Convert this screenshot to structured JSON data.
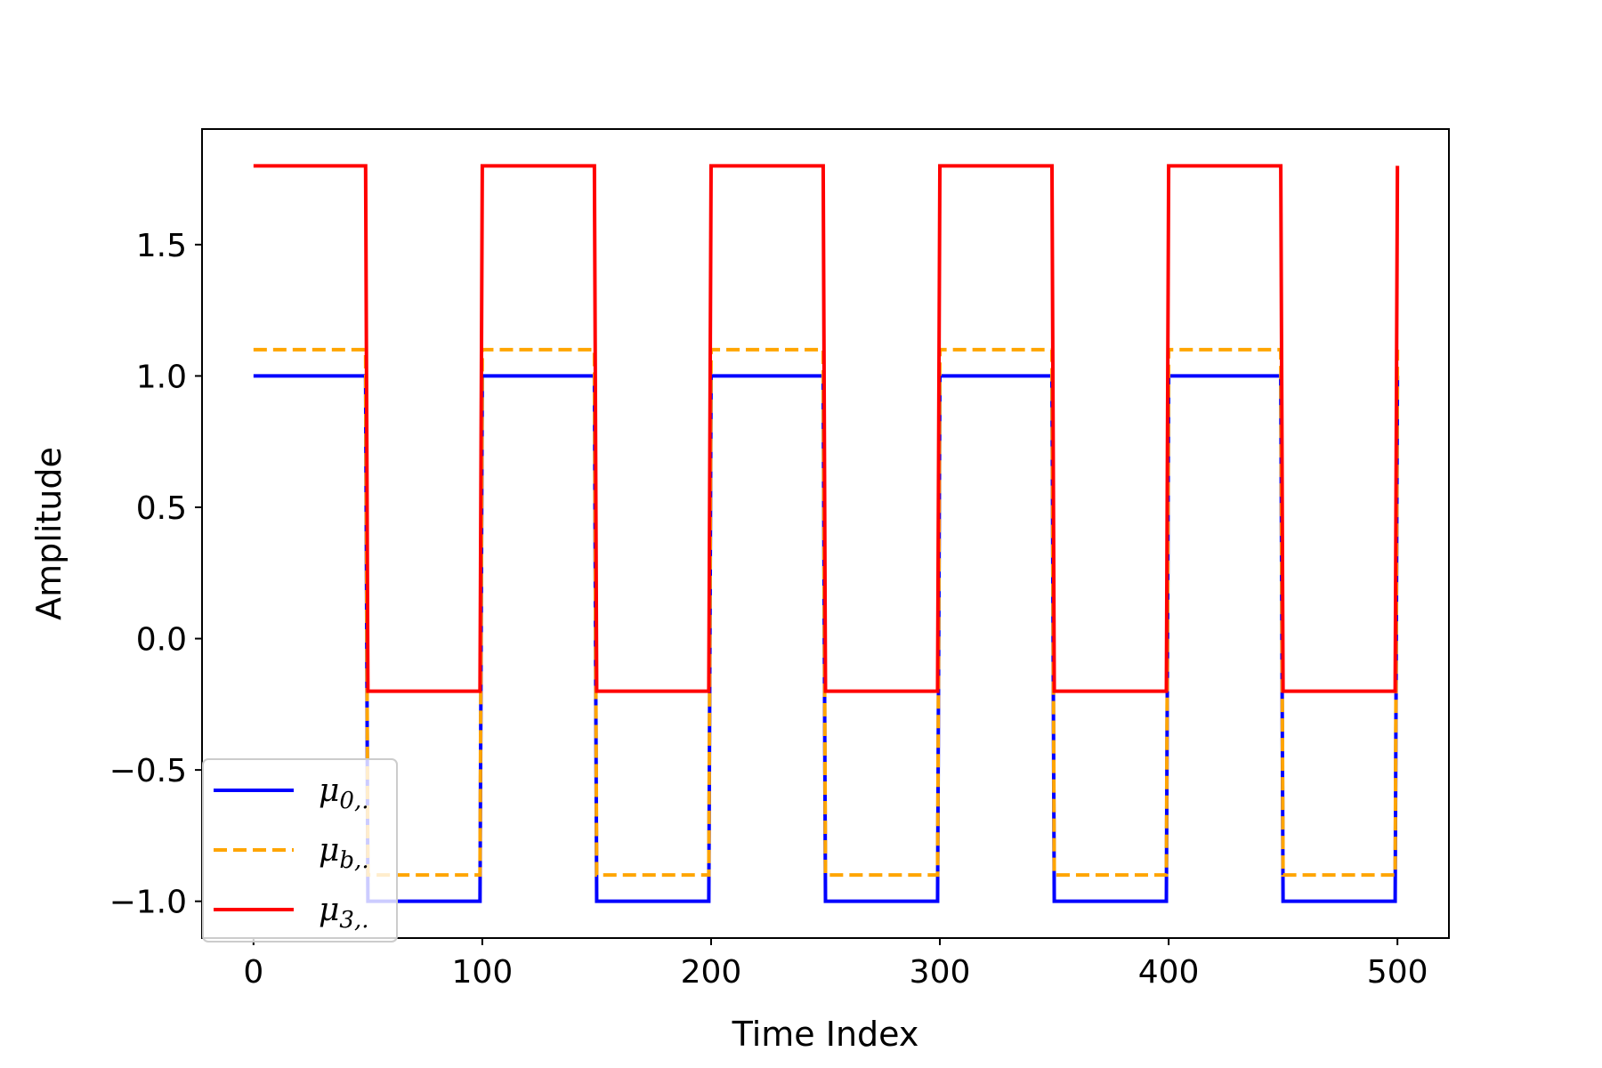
{
  "chart_data": {
    "type": "line",
    "xlabel": "Time Index",
    "ylabel": "Amplitude",
    "xlim": [
      -22.5,
      522.5
    ],
    "ylim": [
      -1.14,
      1.94
    ],
    "xticks": [
      0,
      100,
      200,
      300,
      400,
      500
    ],
    "xtick_labels": [
      "0",
      "100",
      "200",
      "300",
      "400",
      "500"
    ],
    "yticks": [
      -1.0,
      -0.5,
      0.0,
      0.5,
      1.0,
      1.5
    ],
    "ytick_labels": [
      "−1.0",
      "−0.5",
      "0.0",
      "0.5",
      "1.0",
      "1.5"
    ],
    "grid": false,
    "legend_position": "lower-left",
    "series": [
      {
        "name": "μ0,.",
        "name_main": "μ",
        "name_sub": "0,.",
        "color": "#0000ff",
        "style": "solid",
        "step_period": 100,
        "high_until": 50,
        "high": 1.0,
        "low": -1.0,
        "x_range": [
          0,
          500
        ]
      },
      {
        "name": "μb,.",
        "name_main": "μ",
        "name_sub": "b,.",
        "color": "#ffa500",
        "style": "dashed",
        "step_period": 100,
        "high_until": 50,
        "high": 1.1,
        "low": -0.9,
        "x_range": [
          0,
          500
        ]
      },
      {
        "name": "μ3,.",
        "name_main": "μ",
        "name_sub": "3,.",
        "color": "#ff0000",
        "style": "solid",
        "step_period": 100,
        "high_until": 50,
        "high": 1.8,
        "low": -0.2,
        "x_range": [
          0,
          500
        ]
      }
    ]
  }
}
